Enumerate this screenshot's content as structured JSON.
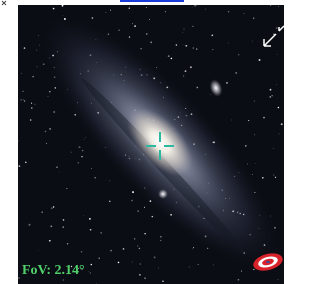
{
  "fov_label": "FoV: 2.14°"
}
